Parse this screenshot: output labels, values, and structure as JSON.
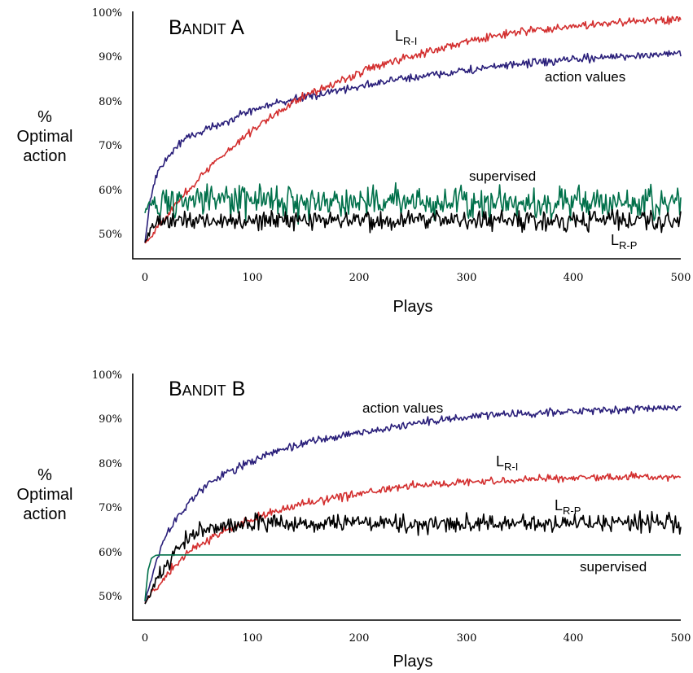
{
  "chart_data": [
    {
      "type": "line",
      "title": "Bandit A",
      "xlabel": "Plays",
      "ylabel": [
        "%",
        "Optimal",
        "action"
      ],
      "xlim": [
        0,
        500
      ],
      "ylim": [
        45,
        100
      ],
      "xticks": [
        "0",
        "100",
        "200",
        "300",
        "400",
        "500"
      ],
      "yticks": [
        "50%",
        "60%",
        "70%",
        "80%",
        "90%",
        "100%"
      ],
      "grid": false,
      "series": [
        {
          "name": "action values",
          "color": "#2a1f7a",
          "noise": 0.45,
          "x": [
            0,
            5,
            10,
            20,
            30,
            40,
            50,
            60,
            80,
            100,
            120,
            150,
            200,
            250,
            300,
            350,
            400,
            450,
            500
          ],
          "values": [
            48,
            58,
            63,
            67,
            70,
            72,
            73,
            74,
            76,
            78,
            79.5,
            81,
            83.5,
            85.5,
            87,
            88.5,
            89.5,
            90.3,
            91
          ]
        },
        {
          "name": "L_R-I",
          "color": "#d32f2f",
          "noise": 0.45,
          "x": [
            0,
            10,
            20,
            30,
            40,
            50,
            60,
            80,
            100,
            120,
            150,
            200,
            250,
            300,
            350,
            400,
            450,
            500
          ],
          "values": [
            48,
            51,
            54,
            57,
            60,
            62.5,
            65,
            69.5,
            73.5,
            77,
            81.5,
            86.5,
            90.5,
            93.5,
            95.8,
            97,
            98,
            98.7
          ]
        },
        {
          "name": "supervised",
          "color": "#00704a",
          "noise": 1.8,
          "x": [
            0,
            5,
            10,
            20,
            500
          ],
          "values": [
            55,
            57,
            57,
            57.5,
            57.2
          ]
        },
        {
          "name": "L_R-P",
          "color": "#000000",
          "noise": 1.1,
          "x": [
            0,
            5,
            10,
            20,
            500
          ],
          "values": [
            48,
            51,
            52.5,
            53.2,
            53.2
          ]
        }
      ],
      "labels": {
        "action_values": "action values",
        "lri_main": "L",
        "lri_sub": "R-I",
        "supervised": "supervised",
        "lrp_main": "L",
        "lrp_sub": "R-P"
      }
    },
    {
      "type": "line",
      "title": "Bandit B",
      "xlabel": "Plays",
      "ylabel": [
        "%",
        "Optimal",
        "action"
      ],
      "xlim": [
        0,
        500
      ],
      "ylim": [
        45,
        100
      ],
      "xticks": [
        "0",
        "100",
        "200",
        "300",
        "400",
        "500"
      ],
      "yticks": [
        "50%",
        "60%",
        "70%",
        "80%",
        "90%",
        "100%"
      ],
      "grid": false,
      "series": [
        {
          "name": "action values",
          "color": "#2a1f7a",
          "noise": 0.45,
          "x": [
            0,
            5,
            10,
            20,
            30,
            40,
            50,
            60,
            80,
            100,
            120,
            150,
            200,
            250,
            300,
            350,
            400,
            450,
            500
          ],
          "values": [
            49,
            53,
            58,
            64,
            68,
            71,
            73.5,
            75.5,
            78.5,
            80.5,
            82.5,
            84.7,
            87,
            89,
            90.5,
            91.3,
            91.8,
            92.3,
            92.7
          ]
        },
        {
          "name": "L_R-I",
          "color": "#d32f2f",
          "noise": 0.45,
          "x": [
            0,
            10,
            20,
            30,
            40,
            50,
            60,
            80,
            100,
            120,
            150,
            200,
            250,
            300,
            350,
            400,
            450,
            500
          ],
          "values": [
            48.5,
            52,
            55,
            57.5,
            60,
            61.5,
            63,
            65.5,
            67.5,
            69,
            71,
            73.3,
            75,
            75.9,
            76.5,
            76.8,
            77,
            77
          ]
        },
        {
          "name": "L_R-P",
          "color": "#000000",
          "noise": 1.0,
          "x": [
            0,
            10,
            20,
            30,
            40,
            50,
            60,
            80,
            100,
            500
          ],
          "values": [
            48.5,
            53,
            57,
            60.5,
            63,
            64.5,
            65.2,
            66,
            66.5,
            66.5
          ]
        },
        {
          "name": "supervised",
          "color": "#00704a",
          "noise": 0,
          "x": [
            0,
            3,
            6,
            10,
            15,
            500
          ],
          "values": [
            49,
            56,
            58.6,
            59.3,
            59.4,
            59.4
          ]
        }
      ],
      "labels": {
        "action_values": "action values",
        "lri_main": "L",
        "lri_sub": "R-I",
        "lrp_main": "L",
        "lrp_sub": "R-P",
        "supervised": "supervised"
      }
    }
  ]
}
